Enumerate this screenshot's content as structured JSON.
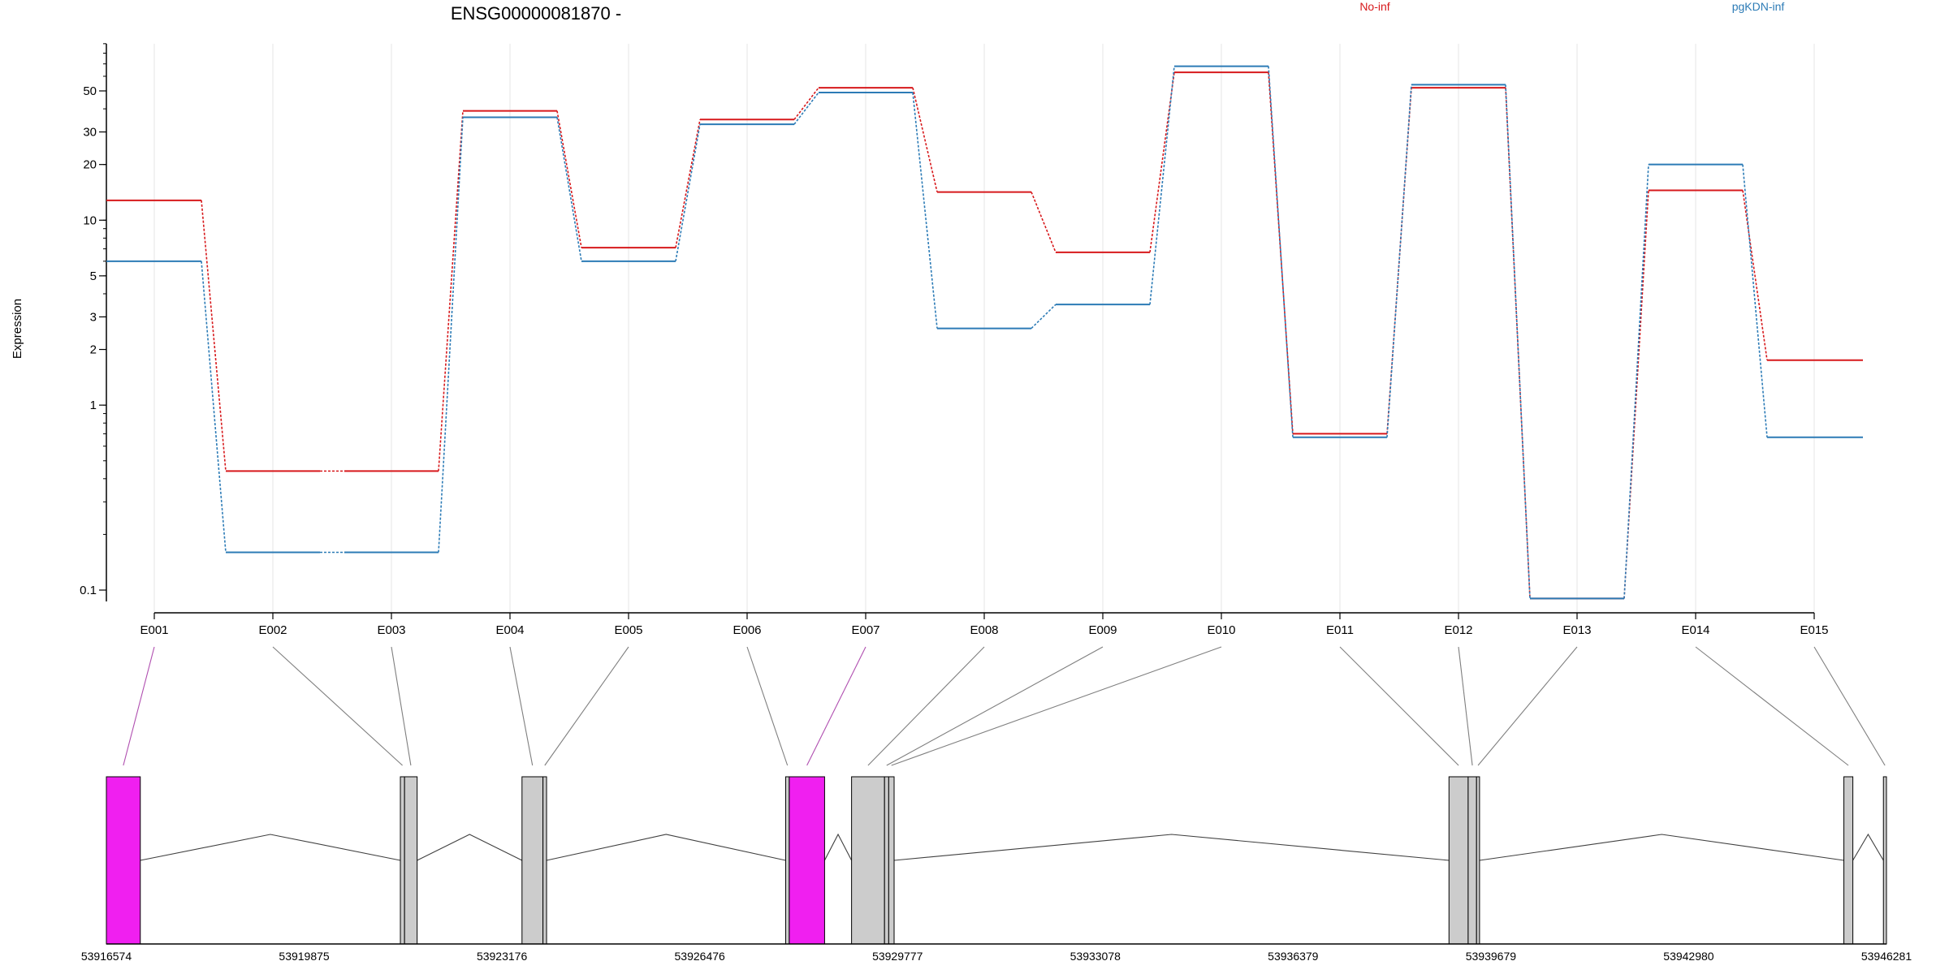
{
  "chart_data": {
    "type": "line",
    "title": "ENSG00000081870 -",
    "ylabel": "Expression",
    "yscale": "log",
    "ylim": [
      0.08,
      90
    ],
    "yticks": [
      {
        "value": 0.1,
        "label": "0.1"
      },
      {
        "value": 1,
        "label": "1"
      },
      {
        "value": 2,
        "label": "2"
      },
      {
        "value": 3,
        "label": "3"
      },
      {
        "value": 5,
        "label": "5"
      },
      {
        "value": 10,
        "label": "10"
      },
      {
        "value": 20,
        "label": "20"
      },
      {
        "value": 30,
        "label": "30"
      },
      {
        "value": 50,
        "label": "50"
      }
    ],
    "grid": "vertical",
    "legend_position": "top",
    "categories": [
      "E001",
      "E002",
      "E003",
      "E004",
      "E005",
      "E006",
      "E007",
      "E008",
      "E009",
      "E010",
      "E011",
      "E012",
      "E013",
      "E014",
      "E015"
    ],
    "series": [
      {
        "name": "No-inf",
        "color": "#d7191c",
        "values": [
          12.8,
          0.44,
          0.44,
          39,
          7.1,
          35,
          52,
          14.2,
          6.7,
          63,
          0.7,
          52,
          0.09,
          14.5,
          1.75
        ]
      },
      {
        "name": "pgKDN-inf",
        "color": "#2c7bb6",
        "values": [
          6.0,
          0.16,
          0.16,
          36,
          6.0,
          33,
          49,
          2.6,
          3.5,
          68,
          0.67,
          54,
          0.09,
          20,
          0.67
        ]
      }
    ],
    "genomic_axis": {
      "start": 53916574,
      "end": 53946281,
      "ticks": [
        "53916574",
        "53919875",
        "53923176",
        "53926476",
        "53929777",
        "53933078",
        "53936379",
        "53939679",
        "53942980",
        "53946281"
      ]
    },
    "exons": [
      {
        "id": "E001",
        "start": 53916574,
        "end": 53917140,
        "highlight": true
      },
      {
        "id": "E002",
        "start": 53921480,
        "end": 53921550,
        "highlight": false
      },
      {
        "id": "E003",
        "start": 53921550,
        "end": 53921760,
        "highlight": false
      },
      {
        "id": "E004",
        "start": 53923510,
        "end": 53923860,
        "highlight": false
      },
      {
        "id": "E005",
        "start": 53923860,
        "end": 53923920,
        "highlight": false
      },
      {
        "id": "E006",
        "start": 53927910,
        "end": 53927970,
        "highlight": false
      },
      {
        "id": "E007",
        "start": 53927970,
        "end": 53928560,
        "highlight": true
      },
      {
        "id": "E008",
        "start": 53929010,
        "end": 53929560,
        "highlight": false
      },
      {
        "id": "E009",
        "start": 53929560,
        "end": 53929630,
        "highlight": false
      },
      {
        "id": "E010",
        "start": 53929630,
        "end": 53929720,
        "highlight": false
      },
      {
        "id": "E011",
        "start": 53938980,
        "end": 53939300,
        "highlight": false
      },
      {
        "id": "E012",
        "start": 53939300,
        "end": 53939440,
        "highlight": false
      },
      {
        "id": "E013",
        "start": 53939440,
        "end": 53939490,
        "highlight": false
      },
      {
        "id": "E014",
        "start": 53945570,
        "end": 53945720,
        "highlight": false
      },
      {
        "id": "E015",
        "start": 53946230,
        "end": 53946281,
        "highlight": false
      }
    ],
    "colors": {
      "axis": "#000000",
      "grid": "#e6e6e6",
      "connector": "#7f7f7f",
      "connector_highlight": "#b04fb0",
      "exon_fill": "#cccccc",
      "exon_highlight": "#f01ff0",
      "intron": "#404040"
    }
  }
}
